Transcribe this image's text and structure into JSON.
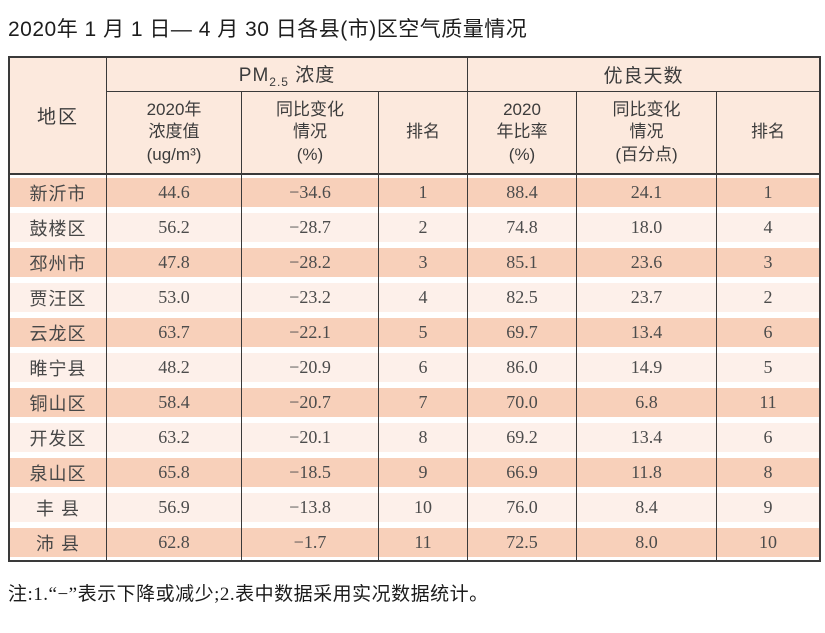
{
  "title": "2020年 1 月 1 日— 4 月 30 日各县(市)区空气质量情况",
  "note": "注:1.“−”表示下降或减少;2.表中数据采用实况数据统计。",
  "colors": {
    "border_dark": "#3a3a3a",
    "header_bg": "#fce9dd",
    "row_odd": "#f8d0ba",
    "row_even": "#fdf0ea"
  },
  "table": {
    "region_header": "地区",
    "pm_group": {
      "prefix": "PM",
      "sub": "2.5",
      "suffix": " 浓度"
    },
    "good_group": "优良天数",
    "sub_headers": [
      {
        "lines": [
          "2020年",
          "浓度值",
          "(ug/m³)"
        ]
      },
      {
        "lines": [
          "同比变化",
          "情况",
          "(%)"
        ]
      },
      {
        "lines": [
          "排名"
        ]
      },
      {
        "lines": [
          "2020",
          "年比率",
          "(%)"
        ]
      },
      {
        "lines": [
          "同比变化",
          "情况",
          "(百分点)"
        ]
      },
      {
        "lines": [
          "排名"
        ]
      }
    ],
    "rows": [
      {
        "region": "新沂市",
        "pm_value": "44.6",
        "pm_change": "−34.6",
        "pm_rank": "1",
        "good_rate": "88.4",
        "good_change": "24.1",
        "good_rank": "1"
      },
      {
        "region": "鼓楼区",
        "pm_value": "56.2",
        "pm_change": "−28.7",
        "pm_rank": "2",
        "good_rate": "74.8",
        "good_change": "18.0",
        "good_rank": "4"
      },
      {
        "region": "邳州市",
        "pm_value": "47.8",
        "pm_change": "−28.2",
        "pm_rank": "3",
        "good_rate": "85.1",
        "good_change": "23.6",
        "good_rank": "3"
      },
      {
        "region": "贾汪区",
        "pm_value": "53.0",
        "pm_change": "−23.2",
        "pm_rank": "4",
        "good_rate": "82.5",
        "good_change": "23.7",
        "good_rank": "2"
      },
      {
        "region": "云龙区",
        "pm_value": "63.7",
        "pm_change": "−22.1",
        "pm_rank": "5",
        "good_rate": "69.7",
        "good_change": "13.4",
        "good_rank": "6"
      },
      {
        "region": "睢宁县",
        "pm_value": "48.2",
        "pm_change": "−20.9",
        "pm_rank": "6",
        "good_rate": "86.0",
        "good_change": "14.9",
        "good_rank": "5"
      },
      {
        "region": "铜山区",
        "pm_value": "58.4",
        "pm_change": "−20.7",
        "pm_rank": "7",
        "good_rate": "70.0",
        "good_change": "6.8",
        "good_rank": "11"
      },
      {
        "region": "开发区",
        "pm_value": "63.2",
        "pm_change": "−20.1",
        "pm_rank": "8",
        "good_rate": "69.2",
        "good_change": "13.4",
        "good_rank": "6"
      },
      {
        "region": "泉山区",
        "pm_value": "65.8",
        "pm_change": "−18.5",
        "pm_rank": "9",
        "good_rate": "66.9",
        "good_change": "11.8",
        "good_rank": "8"
      },
      {
        "region": "丰 县",
        "pm_value": "56.9",
        "pm_change": "−13.8",
        "pm_rank": "10",
        "good_rate": "76.0",
        "good_change": "8.4",
        "good_rank": "9"
      },
      {
        "region": "沛 县",
        "pm_value": "62.8",
        "pm_change": "−1.7",
        "pm_rank": "11",
        "good_rate": "72.5",
        "good_change": "8.0",
        "good_rank": "10"
      }
    ]
  }
}
